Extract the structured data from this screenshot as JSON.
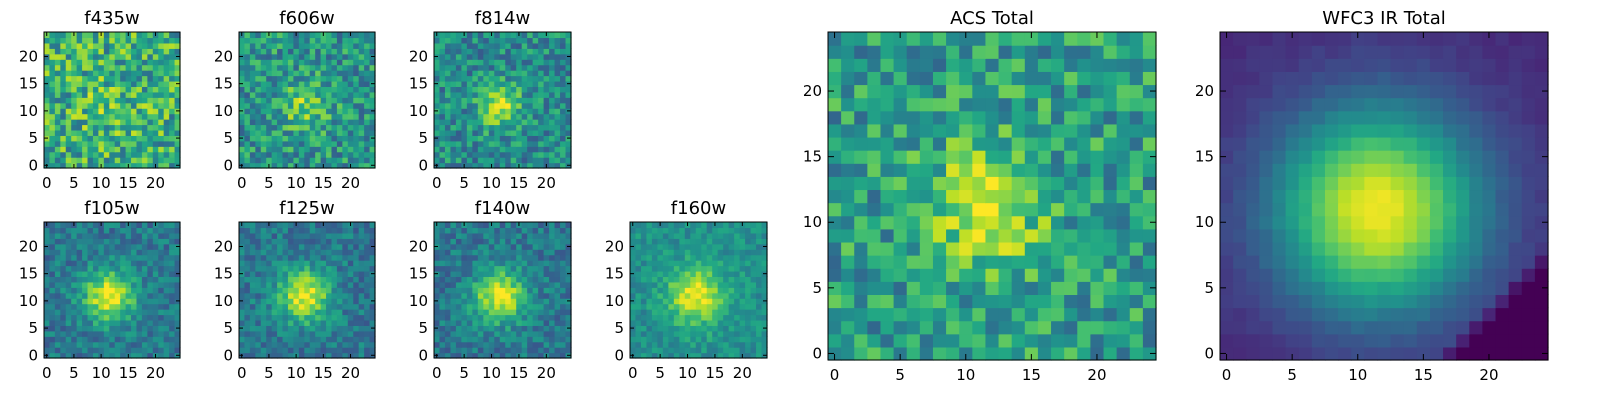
{
  "colormap": "viridis",
  "chart_data": [
    {
      "type": "heatmap",
      "title": "f435w",
      "seed": 11,
      "pattern": "noise",
      "xlim": [
        0,
        24
      ],
      "ylim": [
        0,
        24
      ],
      "xticks": [
        "0",
        "5",
        "10",
        "15",
        "20"
      ],
      "yticks": [
        "0",
        "5",
        "10",
        "15",
        "20"
      ]
    },
    {
      "type": "heatmap",
      "title": "f606w",
      "seed": 23,
      "pattern": "faint",
      "xlim": [
        0,
        24
      ],
      "ylim": [
        0,
        24
      ],
      "xticks": [
        "0",
        "5",
        "10",
        "15",
        "20"
      ],
      "yticks": [
        "0",
        "5",
        "10",
        "15",
        "20"
      ]
    },
    {
      "type": "heatmap",
      "title": "f814w",
      "seed": 37,
      "pattern": "faint-peak",
      "xlim": [
        0,
        24
      ],
      "ylim": [
        0,
        24
      ],
      "xticks": [
        "0",
        "5",
        "10",
        "15",
        "20"
      ],
      "yticks": [
        "0",
        "5",
        "10",
        "15",
        "20"
      ]
    },
    {
      "type": "heatmap",
      "title": "f105w",
      "seed": 41,
      "pattern": "blob",
      "xlim": [
        0,
        24
      ],
      "ylim": [
        0,
        24
      ],
      "xticks": [
        "0",
        "5",
        "10",
        "15",
        "20"
      ],
      "yticks": [
        "0",
        "5",
        "10",
        "15",
        "20"
      ]
    },
    {
      "type": "heatmap",
      "title": "f125w",
      "seed": 53,
      "pattern": "blob",
      "xlim": [
        0,
        24
      ],
      "ylim": [
        0,
        24
      ],
      "xticks": [
        "0",
        "5",
        "10",
        "15",
        "20"
      ],
      "yticks": [
        "0",
        "5",
        "10",
        "15",
        "20"
      ]
    },
    {
      "type": "heatmap",
      "title": "f140w",
      "seed": 67,
      "pattern": "blob",
      "xlim": [
        0,
        24
      ],
      "ylim": [
        0,
        24
      ],
      "xticks": [
        "0",
        "5",
        "10",
        "15",
        "20"
      ],
      "yticks": [
        "0",
        "5",
        "10",
        "15",
        "20"
      ]
    },
    {
      "type": "heatmap",
      "title": "f160w",
      "seed": 79,
      "pattern": "bright-blob",
      "xlim": [
        0,
        24
      ],
      "ylim": [
        0,
        24
      ],
      "xticks": [
        "0",
        "5",
        "10",
        "15",
        "20"
      ],
      "yticks": [
        "0",
        "5",
        "10",
        "15",
        "20"
      ]
    },
    {
      "type": "heatmap",
      "title": "ACS Total",
      "seed": 89,
      "pattern": "acs",
      "xlim": [
        0,
        24
      ],
      "ylim": [
        0,
        24
      ],
      "xticks": [
        "0",
        "5",
        "10",
        "15",
        "20"
      ],
      "yticks": [
        "0",
        "5",
        "10",
        "15",
        "20"
      ]
    },
    {
      "type": "heatmap",
      "title": "WFC3 IR Total",
      "seed": 97,
      "pattern": "smooth",
      "xlim": [
        0,
        24
      ],
      "ylim": [
        0,
        24
      ],
      "xticks": [
        "0",
        "5",
        "10",
        "15",
        "20"
      ],
      "yticks": [
        "0",
        "5",
        "10",
        "15",
        "20"
      ]
    }
  ]
}
